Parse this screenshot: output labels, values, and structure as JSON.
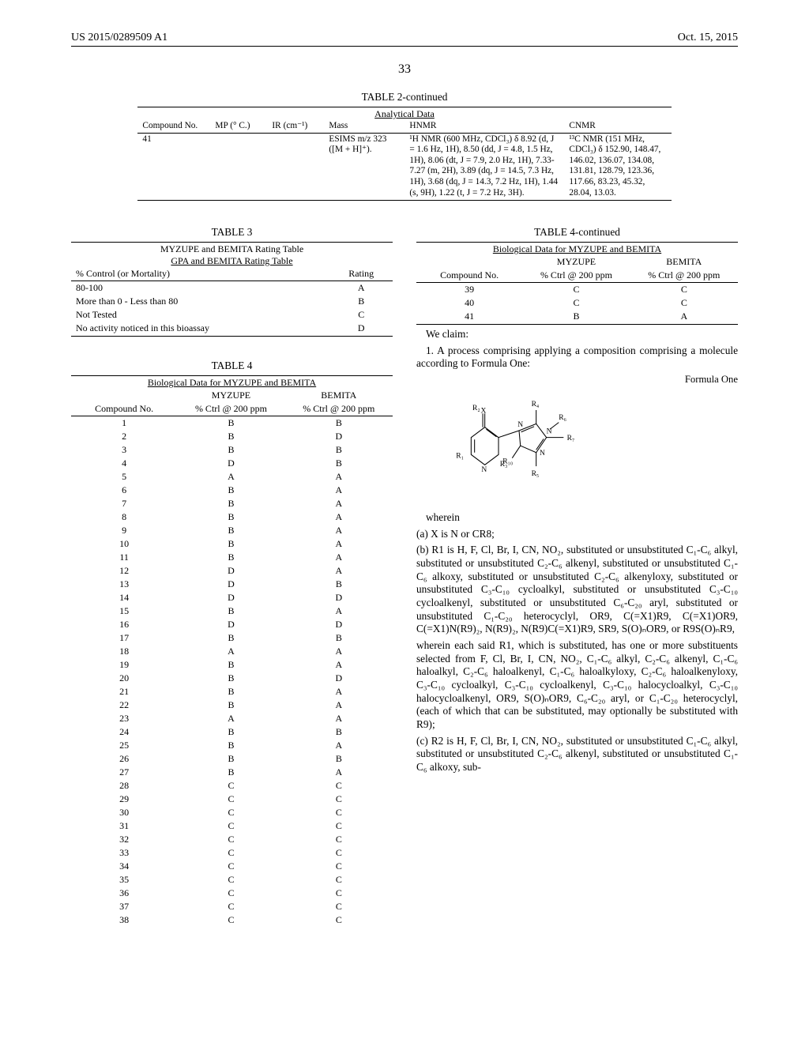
{
  "header": {
    "left": "US 2015/0289509 A1",
    "right": "Oct. 15, 2015"
  },
  "page_number": "33",
  "table2": {
    "title": "TABLE 2-continued",
    "subtitle": "Analytical Data",
    "columns": [
      "Compound No.",
      "MP (° C.)",
      "IR (cm⁻¹)",
      "Mass",
      "HNMR",
      "CNMR"
    ],
    "row": {
      "compound": "41",
      "mp": "",
      "ir": "",
      "mass": "ESIMS m/z 323 ([M + H]⁺).",
      "hnmr": "¹H NMR (600 MHz, CDCl₃) δ 8.92 (d, J = 1.6 Hz, 1H), 8.50 (dd, J = 4.8, 1.5 Hz, 1H), 8.06 (dt, J = 7.9, 2.0 Hz, 1H), 7.33-7.27 (m, 2H), 3.89 (dq, J = 14.5, 7.3 Hz, 1H), 3.68 (dq, J = 14.3, 7.2 Hz, 1H), 1.44 (s, 9H), 1.22 (t, J = 7.2 Hz, 3H).",
      "cnmr": "¹³C NMR (151 MHz, CDCl₃) δ 152.90, 148.47, 146.02, 136.07, 134.08, 131.81, 128.79, 123.36, 117.66, 83.23, 45.32, 28.04, 13.03."
    }
  },
  "table3": {
    "title": "TABLE 3",
    "subtitle1": "MYZUPE and BEMITA Rating Table",
    "subtitle2": "GPA and BEMITA Rating Table",
    "columns": [
      "% Control (or Mortality)",
      "Rating"
    ],
    "rows": [
      [
        "80-100",
        "A"
      ],
      [
        "More than 0 - Less than 80",
        "B"
      ],
      [
        "Not Tested",
        "C"
      ],
      [
        "No activity noticed in this bioassay",
        "D"
      ]
    ]
  },
  "table4": {
    "title": "TABLE 4",
    "subtitle": "Biological Data for MYZUPE and BEMITA",
    "col1": "Compound No.",
    "col2_line1": "MYZUPE",
    "col2_line2": "% Ctrl @ 200 ppm",
    "col3_line1": "BEMITA",
    "col3_line2": "% Ctrl @ 200 ppm",
    "rows": [
      [
        "1",
        "B",
        "B"
      ],
      [
        "2",
        "B",
        "D"
      ],
      [
        "3",
        "B",
        "B"
      ],
      [
        "4",
        "D",
        "B"
      ],
      [
        "5",
        "A",
        "A"
      ],
      [
        "6",
        "B",
        "A"
      ],
      [
        "7",
        "B",
        "A"
      ],
      [
        "8",
        "B",
        "A"
      ],
      [
        "9",
        "B",
        "A"
      ],
      [
        "10",
        "B",
        "A"
      ],
      [
        "11",
        "B",
        "A"
      ],
      [
        "12",
        "D",
        "A"
      ],
      [
        "13",
        "D",
        "B"
      ],
      [
        "14",
        "D",
        "D"
      ],
      [
        "15",
        "B",
        "A"
      ],
      [
        "16",
        "D",
        "D"
      ],
      [
        "17",
        "B",
        "B"
      ],
      [
        "18",
        "A",
        "A"
      ],
      [
        "19",
        "B",
        "A"
      ],
      [
        "20",
        "B",
        "D"
      ],
      [
        "21",
        "B",
        "A"
      ],
      [
        "22",
        "B",
        "A"
      ],
      [
        "23",
        "A",
        "A"
      ],
      [
        "24",
        "B",
        "B"
      ],
      [
        "25",
        "B",
        "A"
      ],
      [
        "26",
        "B",
        "B"
      ],
      [
        "27",
        "B",
        "A"
      ],
      [
        "28",
        "C",
        "C"
      ],
      [
        "29",
        "C",
        "C"
      ],
      [
        "30",
        "C",
        "C"
      ],
      [
        "31",
        "C",
        "C"
      ],
      [
        "32",
        "C",
        "C"
      ],
      [
        "33",
        "C",
        "C"
      ],
      [
        "34",
        "C",
        "C"
      ],
      [
        "35",
        "C",
        "C"
      ],
      [
        "36",
        "C",
        "C"
      ],
      [
        "37",
        "C",
        "C"
      ],
      [
        "38",
        "C",
        "C"
      ]
    ]
  },
  "table4cont": {
    "title": "TABLE 4-continued",
    "subtitle": "Biological Data for MYZUPE and BEMITA",
    "col1": "Compound No.",
    "col2_line1": "MYZUPE",
    "col2_line2": "% Ctrl @ 200 ppm",
    "col3_line1": "BEMITA",
    "col3_line2": "% Ctrl @ 200 ppm",
    "rows": [
      [
        "39",
        "C",
        "C"
      ],
      [
        "40",
        "C",
        "C"
      ],
      [
        "41",
        "B",
        "A"
      ]
    ]
  },
  "claims": {
    "we_claim": "We claim:",
    "claim1_lead": "1. A process comprising applying a composition comprising a molecule according to Formula One:",
    "formula_label": "Formula One",
    "wherein": "wherein",
    "item_a": "(a) X is N or CR8;",
    "item_b": "(b) R1 is H, F, Cl, Br, I, CN, NO₂, substituted or unsubstituted C₁-C₆ alkyl, substituted or unsubstituted C₂-C₆ alkenyl, substituted or unsubstituted C₁-C₆ alkoxy, substituted or unsubstituted C₂-C₆ alkenyloxy, substituted or unsubstituted C₃-C₁₀ cycloalkyl, substituted or unsubstituted C₃-C₁₀ cycloalkenyl, substituted or unsubstituted C₆-C₂₀ aryl, substituted or unsubstituted C₁-C₂₀ heterocyclyl, OR9, C(=X1)R9, C(=X1)OR9, C(=X1)N(R9)₂, N(R9)₂, N(R9)C(=X1)R9, SR9, S(O)ₙOR9, or R9S(O)ₙR9,",
    "item_b_sub": "wherein each said R1, which is substituted, has one or more substituents selected from F, Cl, Br, I, CN, NO₂, C₁-C₆ alkyl, C₂-C₆ alkenyl, C₁-C₆ haloalkyl, C₂-C₆ haloalkenyl, C₁-C₆ haloalkyloxy, C₂-C₆ haloalkenyloxy, C₃-C₁₀ cycloalkyl, C₃-C₁₀ cycloalkenyl, C₃-C₁₀ halocycloalkyl, C₃-C₁₀ halocycloalkenyl, OR9, S(O)ₙOR9, C₆-C₂₀ aryl, or C₁-C₂₀ heterocyclyl, (each of which that can be substituted, may optionally be substituted with R9);",
    "item_c": "(c) R2 is H, F, Cl, Br, I, CN, NO₂, substituted or unsubstituted C₁-C₆ alkyl, substituted or unsubstituted C₂-C₆ alkenyl, substituted or unsubstituted C₁-C₆ alkoxy, sub-"
  },
  "formula_nodes": {
    "R1": "R₁",
    "R2": "R₂",
    "R3": "R₃",
    "R4": "R₄",
    "R5": "R₅",
    "R6": "R₆",
    "R7": "R₇",
    "R10": "R₁₀",
    "X": "X",
    "N1": "N",
    "N2": "N",
    "N3": "N",
    "N4": "N"
  }
}
